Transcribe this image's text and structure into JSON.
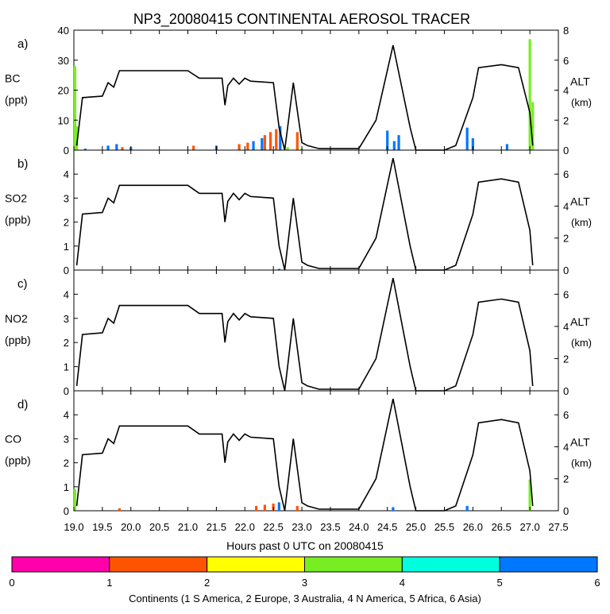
{
  "title": "NP3_20080415 CONTINENTAL AEROSOL TRACER",
  "xlabel": "Hours past 0 UTC on 20080415",
  "x_ticks": [
    "19.0",
    "19.5",
    "20.0",
    "20.5",
    "21.0",
    "21.5",
    "22.0",
    "22.5",
    "23.0",
    "23.5",
    "24.0",
    "24.5",
    "25.0",
    "25.5",
    "26.0",
    "26.5",
    "27.0",
    "27.5"
  ],
  "altitude_profile": {
    "name": "ALT",
    "units": "km",
    "hours": [
      19.05,
      19.15,
      19.5,
      19.6,
      19.7,
      19.8,
      20.2,
      21.0,
      21.2,
      21.6,
      21.65,
      21.7,
      21.8,
      21.9,
      22.0,
      22.1,
      22.5,
      22.6,
      22.7,
      22.85,
      23.0,
      23.1,
      23.3,
      24.0,
      24.3,
      24.6,
      24.9,
      25.0,
      25.5,
      25.7,
      26.0,
      26.1,
      26.5,
      26.8,
      27.0,
      27.05
    ],
    "km": [
      0.3,
      3.5,
      3.6,
      4.5,
      4.2,
      5.3,
      5.3,
      5.3,
      4.8,
      4.8,
      3.0,
      4.3,
      4.8,
      4.4,
      4.8,
      4.6,
      4.5,
      1.5,
      0.0,
      4.5,
      0.5,
      0.3,
      0.1,
      0.1,
      2.0,
      7.0,
      1.5,
      0.0,
      0.0,
      0.3,
      3.5,
      5.5,
      5.7,
      5.5,
      2.5,
      0.3
    ]
  },
  "panels": [
    {
      "label": "a)",
      "species": "BC",
      "units": "(ppt)",
      "yticks": [
        "0",
        "10",
        "20",
        "30",
        "40"
      ],
      "alt_label": "ALT",
      "alt_units": "(km)",
      "alt_ticks": [
        "0",
        "2",
        "4",
        "6",
        "8"
      ],
      "alt_scale": [
        0,
        8
      ]
    },
    {
      "label": "b)",
      "species": "SO2",
      "units": "(ppb)",
      "yticks": [
        "0",
        "1",
        "2",
        "3",
        "4"
      ],
      "alt_label": "ALT",
      "alt_units": "(km)",
      "alt_ticks": [
        "0",
        "2",
        "4",
        "6"
      ],
      "alt_scale": [
        0,
        7.5
      ]
    },
    {
      "label": "c)",
      "species": "NO2",
      "units": "(ppb)",
      "yticks": [
        "0",
        "1",
        "2",
        "3",
        "4"
      ],
      "alt_label": "ALT",
      "alt_units": "(km)",
      "alt_ticks": [
        "0",
        "2",
        "4",
        "6"
      ],
      "alt_scale": [
        0,
        7.5
      ]
    },
    {
      "label": "d)",
      "species": "CO",
      "units": "(ppb)",
      "yticks": [
        "0",
        "1",
        "2",
        "3",
        "4"
      ],
      "alt_label": "ALT",
      "alt_units": "(km)",
      "alt_ticks": [
        "0",
        "2",
        "4",
        "6"
      ],
      "alt_scale": [
        0,
        7.5
      ]
    }
  ],
  "chart_data": {
    "type": "bar",
    "title": "NP3_20080415 CONTINENTAL AEROSOL TRACER",
    "xlabel": "Hours past 0 UTC on 20080415",
    "xlim": [
      19.0,
      27.5
    ],
    "panels": [
      {
        "species": "BC",
        "ylabel": "BC (ppt)",
        "ylim": [
          0,
          40
        ],
        "secondary_ylabel": "ALT (km)",
        "secondary_ylim": [
          0,
          8
        ],
        "bars": [
          {
            "x": 19.02,
            "continent": 4,
            "value": 28
          },
          {
            "x": 19.05,
            "continent": 4,
            "value": 8
          },
          {
            "x": 19.2,
            "continent": 6,
            "value": 0.5
          },
          {
            "x": 19.6,
            "continent": 6,
            "value": 1.5
          },
          {
            "x": 19.75,
            "continent": 6,
            "value": 2
          },
          {
            "x": 19.85,
            "continent": 2,
            "value": 1
          },
          {
            "x": 20.0,
            "continent": 6,
            "value": 1
          },
          {
            "x": 21.1,
            "continent": 2,
            "value": 1.5
          },
          {
            "x": 21.5,
            "continent": 6,
            "value": 1.5
          },
          {
            "x": 21.9,
            "continent": 2,
            "value": 2
          },
          {
            "x": 22.05,
            "continent": 2,
            "value": 2.5
          },
          {
            "x": 22.15,
            "continent": 6,
            "value": 3
          },
          {
            "x": 22.3,
            "continent": 6,
            "value": 4
          },
          {
            "x": 22.35,
            "continent": 2,
            "value": 5
          },
          {
            "x": 22.45,
            "continent": 2,
            "value": 6
          },
          {
            "x": 22.55,
            "continent": 2,
            "value": 7
          },
          {
            "x": 22.62,
            "continent": 6,
            "value": 8
          },
          {
            "x": 22.75,
            "continent": 4,
            "value": 1
          },
          {
            "x": 22.92,
            "continent": 2,
            "value": 6
          },
          {
            "x": 23.0,
            "continent": 4,
            "value": 0.5
          },
          {
            "x": 24.5,
            "continent": 6,
            "value": 6.5
          },
          {
            "x": 24.62,
            "continent": 6,
            "value": 3
          },
          {
            "x": 24.7,
            "continent": 6,
            "value": 5
          },
          {
            "x": 25.9,
            "continent": 6,
            "value": 7.5
          },
          {
            "x": 26.0,
            "continent": 6,
            "value": 4
          },
          {
            "x": 26.6,
            "continent": 6,
            "value": 2
          },
          {
            "x": 27.0,
            "continent": 4,
            "value": 37
          },
          {
            "x": 27.05,
            "continent": 4,
            "value": 16
          }
        ]
      },
      {
        "species": "SO2",
        "ylabel": "SO2 (ppb)",
        "ylim": [
          0,
          5
        ],
        "secondary_ylabel": "ALT (km)",
        "secondary_ylim": [
          0,
          7.5
        ],
        "bars": [
          {
            "x": 22.6,
            "continent": 6,
            "value": 0.05
          }
        ]
      },
      {
        "species": "NO2",
        "ylabel": "NO2 (ppb)",
        "ylim": [
          0,
          5
        ],
        "secondary_ylabel": "ALT (km)",
        "secondary_ylim": [
          0,
          7.5
        ],
        "bars": []
      },
      {
        "species": "CO",
        "ylabel": "CO (ppb)",
        "ylim": [
          0,
          5
        ],
        "secondary_ylabel": "ALT (km)",
        "secondary_ylim": [
          0,
          7.5
        ],
        "bars": [
          {
            "x": 19.02,
            "continent": 4,
            "value": 0.9
          },
          {
            "x": 19.8,
            "continent": 2,
            "value": 0.1
          },
          {
            "x": 22.2,
            "continent": 2,
            "value": 0.2
          },
          {
            "x": 22.35,
            "continent": 2,
            "value": 0.25
          },
          {
            "x": 22.5,
            "continent": 2,
            "value": 0.3
          },
          {
            "x": 22.6,
            "continent": 6,
            "value": 0.35
          },
          {
            "x": 22.92,
            "continent": 2,
            "value": 0.2
          },
          {
            "x": 24.6,
            "continent": 6,
            "value": 0.15
          },
          {
            "x": 25.9,
            "continent": 6,
            "value": 0.2
          },
          {
            "x": 27.0,
            "continent": 4,
            "value": 1.3
          }
        ]
      }
    ]
  },
  "colorbar": {
    "label": "Continents (1 S America, 2 Europe, 3 Australia, 4 N America, 5 Africa, 6 Asia)",
    "ticks": [
      "0",
      "1",
      "2",
      "3",
      "4",
      "5",
      "6"
    ],
    "colors": [
      "#ff00aa",
      "#ff5500",
      "#ffff00",
      "#77ee22",
      "#00ffdd",
      "#0077ff"
    ]
  }
}
